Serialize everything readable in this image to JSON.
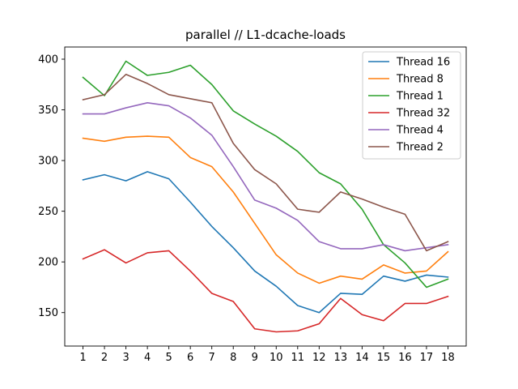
{
  "chart_data": {
    "type": "line",
    "title": "parallel // L1-dcache-loads",
    "xlabel": "",
    "ylabel": "",
    "x": [
      1,
      2,
      3,
      4,
      5,
      6,
      7,
      8,
      9,
      10,
      11,
      12,
      13,
      14,
      15,
      16,
      17,
      18
    ],
    "xlim": [
      0.15,
      18.85
    ],
    "ylim": [
      117,
      412
    ],
    "yticks": [
      150,
      200,
      250,
      300,
      350,
      400
    ],
    "grid": false,
    "legend_position": "top-right",
    "series": [
      {
        "name": "Thread 16",
        "color": "#1f77b4",
        "values": [
          281,
          286,
          280,
          289,
          282,
          259,
          235,
          214,
          191,
          176,
          157,
          150,
          169,
          168,
          186,
          181,
          187,
          185
        ]
      },
      {
        "name": "Thread 8",
        "color": "#ff7f0e",
        "values": [
          322,
          319,
          323,
          324,
          323,
          303,
          294,
          269,
          238,
          207,
          189,
          179,
          186,
          183,
          197,
          189,
          191,
          210
        ]
      },
      {
        "name": "Thread 1",
        "color": "#2ca02c",
        "values": [
          382,
          364,
          398,
          384,
          387,
          394,
          375,
          349,
          336,
          324,
          309,
          288,
          277,
          252,
          217,
          199,
          175,
          183
        ]
      },
      {
        "name": "Thread 32",
        "color": "#d62728",
        "values": [
          203,
          212,
          199,
          209,
          211,
          191,
          169,
          161,
          134,
          131,
          132,
          139,
          164,
          148,
          142,
          159,
          159,
          166
        ]
      },
      {
        "name": "Thread 4",
        "color": "#9467bd",
        "values": [
          346,
          346,
          352,
          357,
          354,
          342,
          325,
          294,
          261,
          253,
          241,
          220,
          213,
          213,
          217,
          211,
          214,
          217
        ]
      },
      {
        "name": "Thread 2",
        "color": "#8c564b",
        "values": [
          360,
          365,
          385,
          376,
          365,
          361,
          357,
          317,
          291,
          277,
          252,
          249,
          269,
          262,
          254,
          247,
          211,
          220
        ]
      }
    ]
  }
}
